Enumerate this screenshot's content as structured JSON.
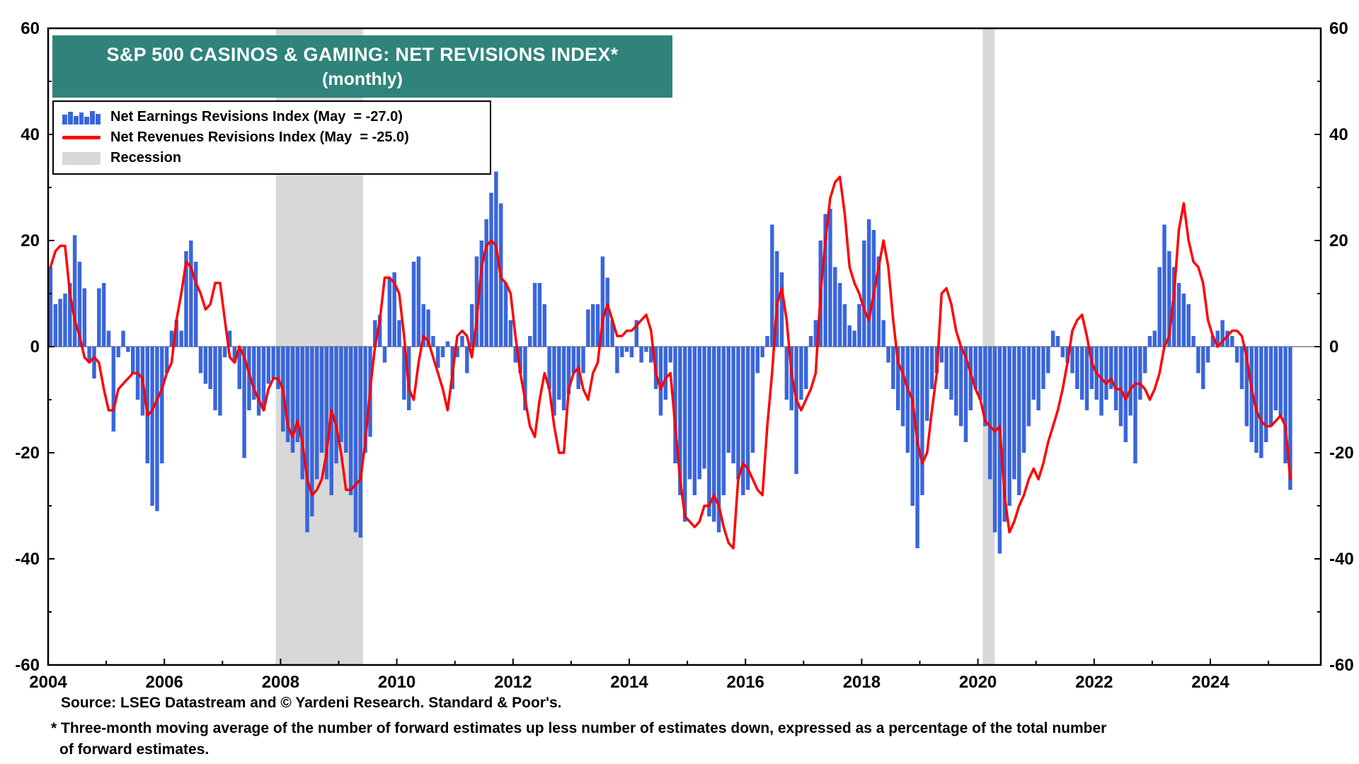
{
  "title": {
    "line1": "S&P 500 CASINOS & GAMING: NET REVISIONS INDEX*",
    "line2": "(monthly)",
    "bg_color": "#2F837B",
    "text_color": "#FFFFFF"
  },
  "legend": {
    "items": [
      {
        "label": "Net Earnings Revisions Index (May  = -27.0)",
        "swatch": "bars",
        "color": "#3A66DB"
      },
      {
        "label": "Net Revenues Revisions Index (May  = -25.0)",
        "swatch": "line",
        "color": "#FF0000"
      },
      {
        "label": "Recession",
        "swatch": "area",
        "color": "#D8D8D8"
      }
    ]
  },
  "footer": {
    "source": "Source: LSEG Datastream and © Yardeni Research. Standard & Poor's.",
    "footnote1": "* Three-month moving average of the number of forward estimates up less number of estimates down, expressed as a percentage of the total number",
    "footnote2": "of forward estimates."
  },
  "chart_data": {
    "type": "bar",
    "title": "S&P 500 CASINOS & GAMING: NET REVISIONS INDEX* (monthly)",
    "frequency": "monthly",
    "x_start": 2004.0,
    "xlim": [
      2004.0,
      2025.9
    ],
    "ylim": [
      -60,
      60
    ],
    "y_tick_step": 20,
    "y_minor_step": 10,
    "x_axis_years": {
      "start": 2004,
      "end": 2025,
      "label_every": 2
    },
    "recessions": [
      [
        2007.917,
        2009.42
      ],
      [
        2020.083,
        2020.29
      ]
    ],
    "recession_color": "#D8D8D8",
    "zero_line_color": "#808080",
    "series": [
      {
        "name": "Net Earnings Revisions Index",
        "render": "bar",
        "color": "#3A66DB",
        "last_label": "May = -27.0",
        "values": [
          15,
          8,
          9,
          10,
          12,
          21,
          16,
          11,
          -3,
          -6,
          11,
          12,
          3,
          -16,
          -2,
          3,
          -1,
          -5,
          -10,
          -13,
          -22,
          -30,
          -31,
          -22,
          -5,
          3,
          5,
          3,
          18,
          20,
          16,
          -5,
          -7,
          -8,
          -12,
          -13,
          -2,
          3,
          -3,
          -8,
          -21,
          -12,
          -10,
          -13,
          -12,
          -7,
          -6,
          -8,
          -16,
          -18,
          -20,
          -18,
          -25,
          -35,
          -32,
          -25,
          -20,
          -25,
          -28,
          -22,
          -18,
          -20,
          -28,
          -35,
          -36,
          -20,
          -17,
          5,
          6,
          -3,
          13,
          14,
          5,
          -10,
          -12,
          16,
          17,
          8,
          7,
          2,
          -4,
          -2,
          1,
          -8,
          -2,
          2,
          -5,
          8,
          17,
          20,
          24,
          29,
          33,
          27,
          12,
          5,
          -3,
          -5,
          -12,
          2,
          12,
          12,
          8,
          -8,
          -13,
          -10,
          -12,
          -9,
          -5,
          -8,
          -5,
          7,
          8,
          8,
          17,
          13,
          5,
          -5,
          -2,
          -1,
          -2,
          5,
          -3,
          -1,
          -3,
          -8,
          -13,
          -10,
          -3,
          -22,
          -28,
          -33,
          -25,
          -28,
          -25,
          -23,
          -32,
          -33,
          -35,
          -28,
          -20,
          -22,
          -25,
          -28,
          -27,
          -20,
          -5,
          -2,
          2,
          23,
          18,
          14,
          -10,
          -12,
          -24,
          -10,
          -8,
          2,
          5,
          20,
          25,
          26,
          15,
          12,
          8,
          4,
          3,
          8,
          20,
          24,
          22,
          17,
          5,
          -3,
          -8,
          -12,
          -15,
          -20,
          -30,
          -38,
          -28,
          -14,
          -8,
          -5,
          -3,
          -8,
          -10,
          -13,
          -15,
          -18,
          -12,
          -8,
          -10,
          -15,
          -25,
          -35,
          -39,
          -33,
          -30,
          -25,
          -28,
          -20,
          -15,
          -10,
          -12,
          -8,
          -5,
          3,
          2,
          -2,
          -3,
          -5,
          -8,
          -10,
          -12,
          -8,
          -10,
          -13,
          -10,
          -8,
          -12,
          -15,
          -18,
          -13,
          -22,
          -10,
          -5,
          2,
          3,
          15,
          23,
          18,
          15,
          12,
          10,
          8,
          2,
          -5,
          -8,
          -3,
          2,
          3,
          5,
          3,
          2,
          -3,
          -8,
          -15,
          -18,
          -20,
          -21,
          -18,
          -15,
          -12,
          -13,
          -22,
          -27
        ]
      },
      {
        "name": "Net Revenues Revisions Index",
        "render": "line",
        "color": "#FF0000",
        "last_label": "May = -25.0",
        "values": [
          15,
          18,
          19,
          19,
          10,
          5,
          2,
          -2,
          -3,
          -2,
          -3,
          -8,
          -12,
          -12,
          -8,
          -7,
          -6,
          -5,
          -5,
          -6,
          -13,
          -12,
          -10,
          -8,
          -5,
          -3,
          5,
          10,
          16,
          15,
          12,
          10,
          7,
          8,
          12,
          12,
          5,
          -2,
          -3,
          0,
          -2,
          -5,
          -8,
          -10,
          -12,
          -8,
          -6,
          -6,
          -8,
          -15,
          -17,
          -14,
          -18,
          -25,
          -28,
          -27,
          -25,
          -20,
          -12,
          -15,
          -20,
          -27,
          -27,
          -26,
          -25,
          -18,
          -8,
          0,
          5,
          13,
          13,
          12,
          10,
          2,
          -8,
          -10,
          -3,
          2,
          1,
          -2,
          -5,
          -8,
          -12,
          -5,
          2,
          3,
          2,
          -2,
          5,
          15,
          19,
          20,
          19,
          13,
          12,
          10,
          2,
          -5,
          -10,
          -15,
          -17,
          -10,
          -5,
          -8,
          -15,
          -20,
          -20,
          -8,
          -5,
          -4,
          -8,
          -10,
          -5,
          -3,
          5,
          8,
          5,
          2,
          2,
          3,
          3,
          4,
          5,
          6,
          3,
          -5,
          -8,
          -6,
          -5,
          -15,
          -25,
          -32,
          -33,
          -34,
          -33,
          -30,
          -30,
          -28,
          -30,
          -34,
          -37,
          -38,
          -25,
          -22,
          -23,
          -25,
          -27,
          -28,
          -15,
          -5,
          8,
          11,
          5,
          -5,
          -10,
          -12,
          -10,
          -8,
          -5,
          10,
          20,
          28,
          31,
          32,
          25,
          15,
          12,
          10,
          7,
          5,
          10,
          15,
          20,
          15,
          5,
          -3,
          -5,
          -8,
          -10,
          -18,
          -22,
          -20,
          -12,
          -5,
          10,
          11,
          8,
          3,
          0,
          -2,
          -5,
          -8,
          -10,
          -14,
          -15,
          -16,
          -15,
          -28,
          -35,
          -33,
          -30,
          -28,
          -25,
          -23,
          -25,
          -22,
          -18,
          -15,
          -12,
          -8,
          -3,
          3,
          5,
          6,
          2,
          -3,
          -5,
          -6,
          -7,
          -6,
          -8,
          -8,
          -10,
          -8,
          -7,
          -7,
          -8,
          -10,
          -8,
          -5,
          0,
          2,
          10,
          22,
          27,
          20,
          16,
          15,
          12,
          5,
          2,
          0,
          1,
          2,
          3,
          3,
          2,
          -2,
          -8,
          -12,
          -14,
          -15,
          -15,
          -14,
          -13,
          -15,
          -25
        ]
      }
    ]
  }
}
